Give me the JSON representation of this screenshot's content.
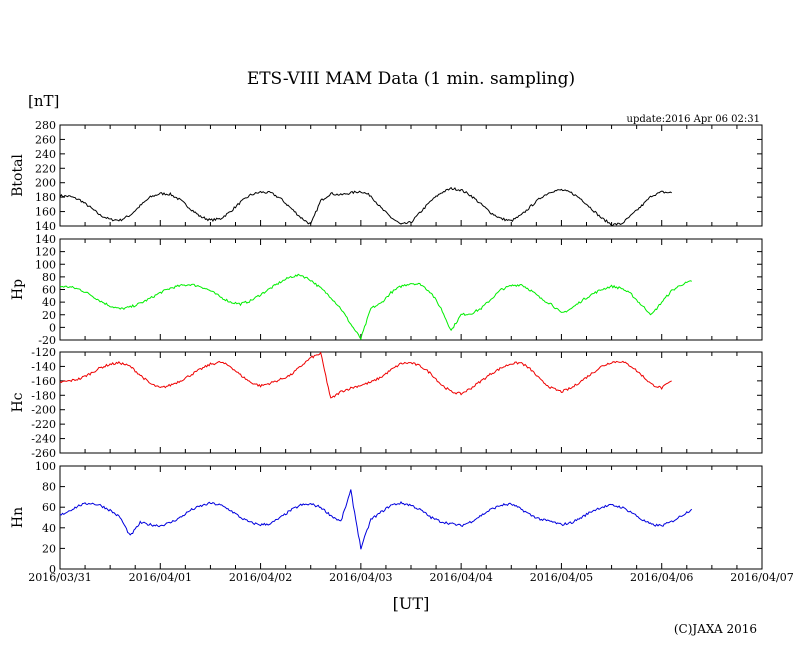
{
  "chart_data": {
    "type": "line",
    "title": "ETS-VIII MAM Data (1 min. sampling)",
    "unit_label": "[nT]",
    "update_text": "update:2016 Apr 06 02:31",
    "xlabel": "[UT]",
    "copyright": "(C)JAXA 2016",
    "x_tick_labels": [
      "2016/03/31",
      "2016/04/01",
      "2016/04/02",
      "2016/04/03",
      "2016/04/04",
      "2016/04/05",
      "2016/04/06",
      "2016/04/07"
    ],
    "xlim_days": [
      0,
      7
    ],
    "x_step_days": 0.1,
    "panels": [
      {
        "name": "Btotal",
        "color": "#000000",
        "ylim": [
          140,
          280
        ],
        "ystep": 20,
        "values": [
          182,
          181,
          176,
          166,
          155,
          149,
          148,
          155,
          168,
          180,
          185,
          184,
          176,
          164,
          153,
          148,
          150,
          160,
          173,
          183,
          187,
          186,
          178,
          165,
          152,
          142,
          175,
          185,
          183,
          186,
          188,
          182,
          165,
          152,
          142,
          145,
          160,
          175,
          186,
          192,
          190,
          182,
          170,
          158,
          150,
          147,
          155,
          168,
          180,
          188,
          190,
          186,
          177,
          164,
          151,
          142,
          143,
          155,
          168,
          182,
          187,
          186
        ]
      },
      {
        "name": "Hp",
        "color": "#00ee00",
        "ylim": [
          -20,
          140
        ],
        "ystep": 20,
        "values": [
          65,
          64,
          60,
          52,
          42,
          34,
          29,
          32,
          38,
          46,
          55,
          62,
          66,
          68,
          65,
          58,
          48,
          40,
          37,
          42,
          52,
          62,
          72,
          80,
          83,
          75,
          62,
          48,
          30,
          5,
          -18,
          30,
          38,
          55,
          65,
          70,
          68,
          55,
          30,
          -5,
          20,
          22,
          30,
          45,
          60,
          66,
          68,
          58,
          45,
          37,
          22,
          30,
          42,
          52,
          60,
          65,
          62,
          52,
          35,
          20,
          40,
          58,
          68,
          73
        ]
      },
      {
        "name": "Hc",
        "color": "#ee0000",
        "ylim": [
          -260,
          -120
        ],
        "ystep": 20,
        "values": [
          -162,
          -160,
          -157,
          -150,
          -142,
          -137,
          -135,
          -140,
          -152,
          -164,
          -170,
          -166,
          -160,
          -152,
          -144,
          -137,
          -134,
          -140,
          -152,
          -162,
          -167,
          -163,
          -158,
          -152,
          -140,
          -128,
          -122,
          -185,
          -175,
          -170,
          -166,
          -162,
          -155,
          -145,
          -136,
          -135,
          -140,
          -150,
          -165,
          -175,
          -178,
          -170,
          -160,
          -150,
          -142,
          -136,
          -135,
          -145,
          -160,
          -170,
          -175,
          -170,
          -160,
          -150,
          -140,
          -134,
          -133,
          -140,
          -152,
          -165,
          -170,
          -160
        ]
      },
      {
        "name": "Hn",
        "color": "#0000dd",
        "ylim": [
          0,
          100
        ],
        "ystep": 20,
        "values": [
          52,
          57,
          62,
          64,
          62,
          57,
          50,
          32,
          45,
          43,
          42,
          45,
          50,
          57,
          61,
          64,
          62,
          57,
          50,
          45,
          43,
          44,
          50,
          57,
          62,
          63,
          60,
          52,
          46,
          76,
          20,
          48,
          55,
          62,
          64,
          62,
          57,
          50,
          46,
          44,
          42,
          46,
          52,
          58,
          62,
          63,
          58,
          52,
          48,
          46,
          43,
          45,
          50,
          56,
          60,
          62,
          60,
          55,
          48,
          43,
          42,
          46,
          52,
          58
        ]
      }
    ]
  }
}
